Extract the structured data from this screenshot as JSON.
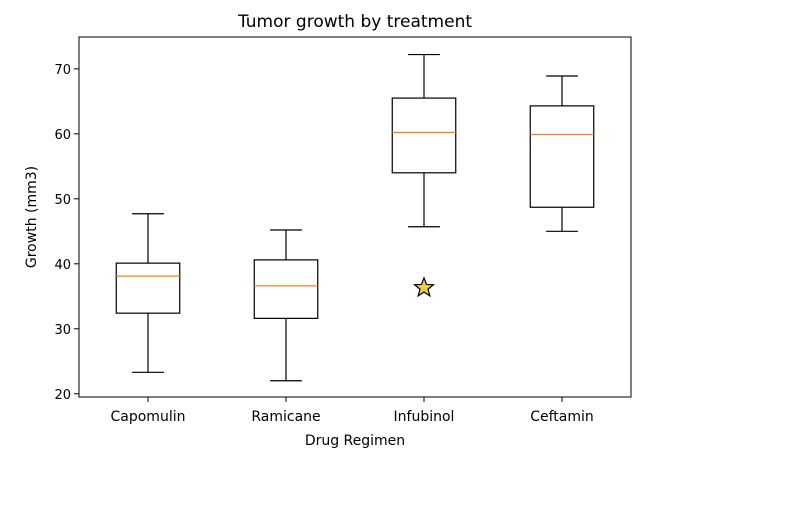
{
  "chart_data": {
    "type": "box",
    "title": "Tumor growth by treatment",
    "xlabel": "Drug Regimen",
    "ylabel": "Growth (mm3)",
    "ylim": [
      19.5,
      74.9
    ],
    "yticks": [
      20,
      30,
      40,
      50,
      60,
      70
    ],
    "categories": [
      "Capomulin",
      "Ramicane",
      "Infubinol",
      "Ceftamin"
    ],
    "boxes": [
      {
        "whislo": 23.3,
        "q1": 32.4,
        "med": 38.1,
        "q3": 40.1,
        "whishi": 47.7,
        "fliers": []
      },
      {
        "whislo": 22.0,
        "q1": 31.6,
        "med": 36.6,
        "q3": 40.6,
        "whishi": 45.2,
        "fliers": []
      },
      {
        "whislo": 45.7,
        "q1": 54.0,
        "med": 60.2,
        "q3": 65.5,
        "whishi": 72.2,
        "fliers": [
          36.3
        ]
      },
      {
        "whislo": 45.0,
        "q1": 48.7,
        "med": 59.9,
        "q3": 64.3,
        "whishi": 68.9,
        "fliers": []
      }
    ],
    "flier_marker": "star",
    "colors": {
      "box": "#000000",
      "median": "#ff7f0e",
      "flier_fill": "#e8d43a",
      "flier_edge": "#000000"
    },
    "grid": false,
    "legend": "none"
  }
}
